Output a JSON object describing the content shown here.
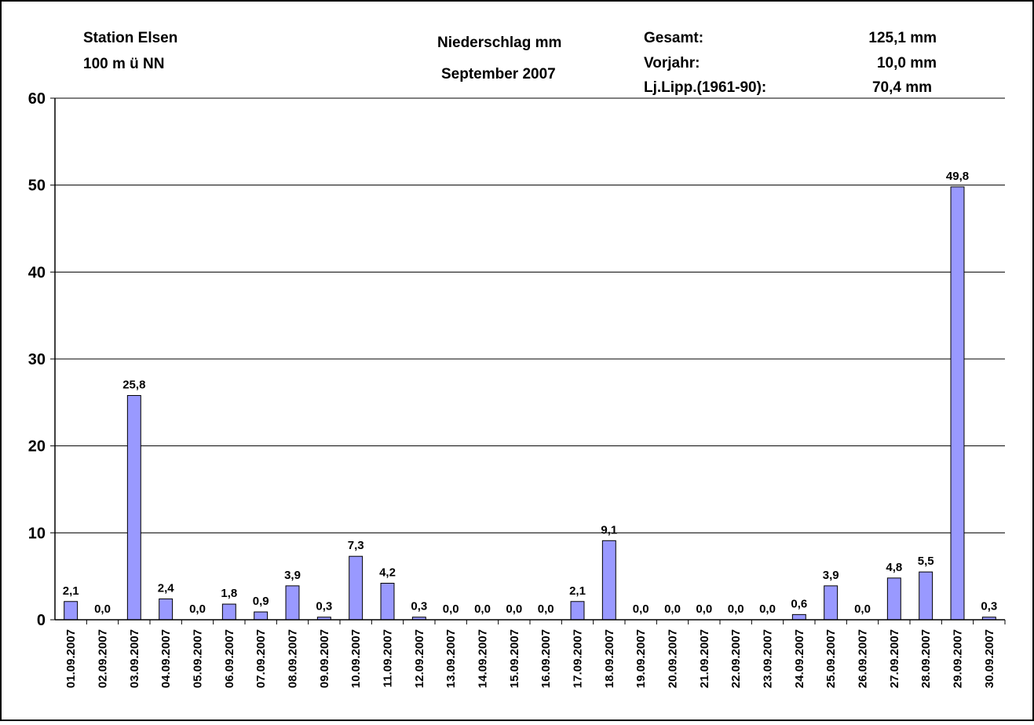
{
  "header": {
    "station_name": "Station Elsen",
    "station_altitude": "100 m ü NN",
    "chart_title": "Niederschlag mm",
    "chart_subtitle": "September 2007",
    "stats": [
      {
        "label": "Gesamt:",
        "value": "125,1 mm"
      },
      {
        "label": "Vorjahr:",
        "value": "10,0 mm"
      },
      {
        "label": "Lj.Lipp.(1961-90):",
        "value": "70,4 mm"
      }
    ]
  },
  "chart_data": {
    "type": "bar",
    "title": "Niederschlag mm",
    "subtitle": "September 2007",
    "xlabel": "",
    "ylabel": "",
    "ylim": [
      0,
      60
    ],
    "yticks": [
      0,
      10,
      20,
      30,
      40,
      50,
      60
    ],
    "grid": true,
    "bar_color": "#9999ff",
    "categories": [
      "01.09.2007",
      "02.09.2007",
      "03.09.2007",
      "04.09.2007",
      "05.09.2007",
      "06.09.2007",
      "07.09.2007",
      "08.09.2007",
      "09.09.2007",
      "10.09.2007",
      "11.09.2007",
      "12.09.2007",
      "13.09.2007",
      "14.09.2007",
      "15.09.2007",
      "16.09.2007",
      "17.09.2007",
      "18.09.2007",
      "19.09.2007",
      "20.09.2007",
      "21.09.2007",
      "22.09.2007",
      "23.09.2007",
      "24.09.2007",
      "25.09.2007",
      "26.09.2007",
      "27.09.2007",
      "28.09.2007",
      "29.09.2007",
      "30.09.2007"
    ],
    "values": [
      2.1,
      0.0,
      25.8,
      2.4,
      0.0,
      1.8,
      0.9,
      3.9,
      0.3,
      7.3,
      4.2,
      0.3,
      0.0,
      0.0,
      0.0,
      0.0,
      2.1,
      9.1,
      0.0,
      0.0,
      0.0,
      0.0,
      0.0,
      0.6,
      3.9,
      0.0,
      4.8,
      5.5,
      49.8,
      0.3
    ],
    "data_labels": [
      "2,1",
      "0,0",
      "25,8",
      "2,4",
      "0,0",
      "1,8",
      "0,9",
      "3,9",
      "0,3",
      "7,3",
      "4,2",
      "0,3",
      "0,0",
      "0,0",
      "0,0",
      "0,0",
      "2,1",
      "9,1",
      "0,0",
      "0,0",
      "0,0",
      "0,0",
      "0,0",
      "0,6",
      "3,9",
      "0,0",
      "4,8",
      "5,5",
      "49,8",
      "0,3"
    ]
  }
}
